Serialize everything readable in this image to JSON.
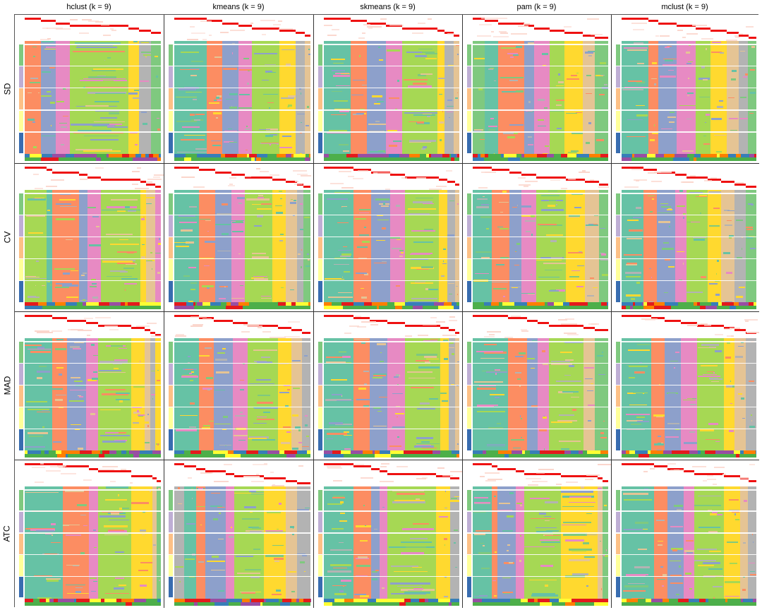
{
  "figure": {
    "column_titles": [
      "hclust (k = 9)",
      "kmeans (k = 9)",
      "skmeans (k = 9)",
      "pam (k = 9)",
      "mclust (k = 9)"
    ],
    "row_titles": [
      "SD",
      "CV",
      "MAD",
      "ATC"
    ]
  },
  "colors": {
    "teal": "#66C2A5",
    "orange": "#FC8D62",
    "blue": "#8DA0CB",
    "pink": "#E78AC3",
    "lime": "#A6D854",
    "yellow": "#FFD92F",
    "tan": "#E5C494",
    "gray": "#B3B3B3",
    "green": "#7FC97F",
    "memb_red": "#EE1111",
    "anno": [
      "#7FC97F",
      "#BEAED4",
      "#FDC086",
      "#FFFF99",
      "#386CB0"
    ],
    "bar": {
      "o": "#FF7F00",
      "b": "#377EB8",
      "r": "#E41A1C",
      "g": "#4DAF4A",
      "p": "#984EA3",
      "y": "#FFFF33"
    }
  },
  "chart_data": {
    "type": "heatmap",
    "title": "Consensus partition membership heatmaps, k = 9",
    "layout": {
      "rows": [
        "SD",
        "CV",
        "MAD",
        "ATC"
      ],
      "columns": [
        "hclust",
        "kmeans",
        "skmeans",
        "pam",
        "mclust"
      ],
      "k": 9
    },
    "annotation_groups": 5,
    "panels": [
      [
        {
          "segs": [
            [
              "orange",
              12
            ],
            [
              "blue",
              11
            ],
            [
              "pink",
              10
            ],
            [
              "lime",
              43
            ],
            [
              "yellow",
              8
            ],
            [
              "gray",
              9
            ],
            [
              "green",
              7
            ]
          ]
        },
        {
          "segs": [
            [
              "teal",
              24
            ],
            [
              "orange",
              11
            ],
            [
              "blue",
              12
            ],
            [
              "pink",
              10
            ],
            [
              "lime",
              20
            ],
            [
              "yellow",
              12
            ],
            [
              "gray",
              7
            ],
            [
              "tan",
              4
            ]
          ]
        },
        {
          "segs": [
            [
              "teal",
              20
            ],
            [
              "orange",
              12
            ],
            [
              "blue",
              14
            ],
            [
              "pink",
              12
            ],
            [
              "lime",
              26
            ],
            [
              "yellow",
              5
            ],
            [
              "gray",
              7
            ],
            [
              "tan",
              4
            ]
          ]
        },
        {
          "segs": [
            [
              "green",
              8
            ],
            [
              "teal",
              9
            ],
            [
              "orange",
              17
            ],
            [
              "blue",
              7
            ],
            [
              "pink",
              10
            ],
            [
              "lime",
              10
            ],
            [
              "yellow",
              12
            ],
            [
              "tan",
              8
            ],
            [
              "green",
              9
            ]
          ]
        },
        {
          "segs": [
            [
              "teal",
              20
            ],
            [
              "orange",
              7
            ],
            [
              "blue",
              14
            ],
            [
              "pink",
              14
            ],
            [
              "lime",
              11
            ],
            [
              "yellow",
              12
            ],
            [
              "tan",
              9
            ],
            [
              "gray",
              7
            ],
            [
              "green",
              6
            ]
          ]
        }
      ],
      [
        {
          "segs": [
            [
              "lime",
              16
            ],
            [
              "teal",
              4
            ],
            [
              "orange",
              20
            ],
            [
              "blue",
              6
            ],
            [
              "pink",
              10
            ],
            [
              "lime",
              29
            ],
            [
              "yellow",
              4
            ],
            [
              "tan",
              7
            ],
            [
              "pink",
              4
            ]
          ]
        },
        {
          "segs": [
            [
              "teal",
              18
            ],
            [
              "orange",
              12
            ],
            [
              "blue",
              12
            ],
            [
              "pink",
              10
            ],
            [
              "lime",
              20
            ],
            [
              "yellow",
              10
            ],
            [
              "tan",
              8
            ],
            [
              "gray",
              5
            ],
            [
              "green",
              5
            ]
          ]
        },
        {
          "segs": [
            [
              "teal",
              22
            ],
            [
              "orange",
              13
            ],
            [
              "blue",
              14
            ],
            [
              "pink",
              11
            ],
            [
              "lime",
              25
            ],
            [
              "yellow",
              6
            ],
            [
              "gray",
              6
            ],
            [
              "tan",
              3
            ]
          ]
        },
        {
          "segs": [
            [
              "teal",
              14
            ],
            [
              "orange",
              13
            ],
            [
              "blue",
              9
            ],
            [
              "pink",
              11
            ],
            [
              "lime",
              22
            ],
            [
              "yellow",
              14
            ],
            [
              "tan",
              10
            ],
            [
              "green",
              7
            ]
          ]
        },
        {
          "segs": [
            [
              "teal",
              16
            ],
            [
              "orange",
              10
            ],
            [
              "blue",
              14
            ],
            [
              "pink",
              8
            ],
            [
              "lime",
              16
            ],
            [
              "yellow",
              10
            ],
            [
              "tan",
              10
            ],
            [
              "gray",
              8
            ],
            [
              "green",
              8
            ]
          ]
        }
      ],
      [
        {
          "segs": [
            [
              "teal",
              20
            ],
            [
              "orange",
              11
            ],
            [
              "blue",
              14
            ],
            [
              "pink",
              9
            ],
            [
              "lime",
              24
            ],
            [
              "yellow",
              10
            ],
            [
              "tan",
              4
            ],
            [
              "gray",
              4
            ],
            [
              "yellow",
              4
            ]
          ]
        },
        {
          "segs": [
            [
              "teal",
              18
            ],
            [
              "orange",
              11
            ],
            [
              "blue",
              14
            ],
            [
              "pink",
              11
            ],
            [
              "lime",
              22
            ],
            [
              "yellow",
              10
            ],
            [
              "tan",
              8
            ],
            [
              "gray",
              6
            ]
          ]
        },
        {
          "segs": [
            [
              "teal",
              22
            ],
            [
              "orange",
              12
            ],
            [
              "blue",
              13
            ],
            [
              "pink",
              13
            ],
            [
              "lime",
              26
            ],
            [
              "yellow",
              6
            ],
            [
              "gray",
              5
            ],
            [
              "tan",
              3
            ]
          ]
        },
        {
          "segs": [
            [
              "teal",
              26
            ],
            [
              "orange",
              14
            ],
            [
              "blue",
              8
            ],
            [
              "pink",
              8
            ],
            [
              "lime",
              26
            ],
            [
              "tan",
              8
            ],
            [
              "green",
              10
            ]
          ]
        },
        {
          "segs": [
            [
              "teal",
              22
            ],
            [
              "orange",
              10
            ],
            [
              "blue",
              12
            ],
            [
              "pink",
              12
            ],
            [
              "lime",
              20
            ],
            [
              "yellow",
              8
            ],
            [
              "tan",
              8
            ],
            [
              "gray",
              8
            ]
          ]
        }
      ],
      [
        {
          "segs": [
            [
              "teal",
              28
            ],
            [
              "orange",
              19
            ],
            [
              "pink",
              7
            ],
            [
              "lime",
              24
            ],
            [
              "teal",
              0
            ],
            [
              "yellow",
              16
            ],
            [
              "tan",
              3
            ],
            [
              "green",
              3
            ]
          ]
        },
        {
          "segs": [
            [
              "gray",
              7
            ],
            [
              "teal",
              9
            ],
            [
              "orange",
              7
            ],
            [
              "blue",
              15
            ],
            [
              "pink",
              6
            ],
            [
              "lime",
              22
            ],
            [
              "yellow",
              16
            ],
            [
              "tan",
              8
            ],
            [
              "gray",
              10
            ]
          ]
        },
        {
          "segs": [
            [
              "teal",
              22
            ],
            [
              "orange",
              13
            ],
            [
              "blue",
              6
            ],
            [
              "pink",
              6
            ],
            [
              "lime",
              36
            ],
            [
              "yellow",
              10
            ],
            [
              "gray",
              7
            ]
          ]
        },
        {
          "segs": [
            [
              "teal",
              14
            ],
            [
              "orange",
              4
            ],
            [
              "blue",
              14
            ],
            [
              "pink",
              6
            ],
            [
              "lime",
              27
            ],
            [
              "yellow",
              27
            ],
            [
              "tan",
              4
            ],
            [
              "green",
              4
            ]
          ]
        },
        {
          "segs": [
            [
              "teal",
              24
            ],
            [
              "orange",
              10
            ],
            [
              "blue",
              12
            ],
            [
              "pink",
              8
            ],
            [
              "lime",
              22
            ],
            [
              "yellow",
              12
            ],
            [
              "tan",
              6
            ],
            [
              "gray",
              6
            ]
          ]
        }
      ]
    ]
  }
}
